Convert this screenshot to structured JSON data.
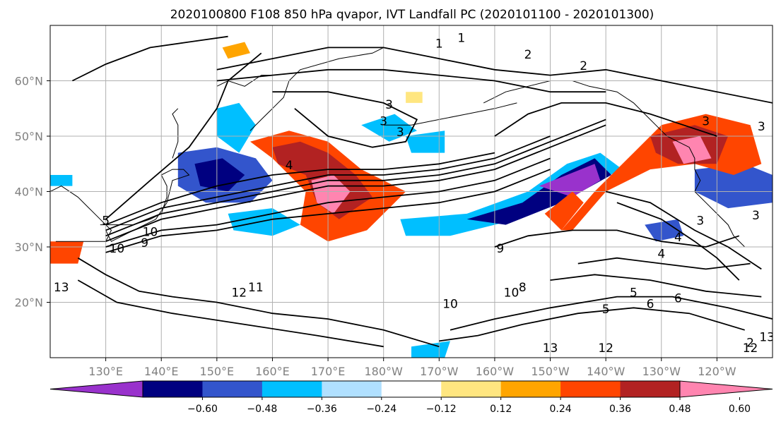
{
  "chart_data": {
    "type": "heatmap",
    "title": "2020100800 F108 850 hPa qvapor, IVT Landfall PC (2020101100 - 2020101300)",
    "map": {
      "lon_range": [
        120,
        250
      ],
      "lat_range": [
        10,
        70
      ],
      "x_ticks": [
        "130°E",
        "140°E",
        "150°E",
        "160°E",
        "170°E",
        "180°W",
        "170°W",
        "160°W",
        "150°W",
        "140°W",
        "130°W",
        "120°W"
      ],
      "x_tick_lons": [
        130,
        140,
        150,
        160,
        170,
        180,
        190,
        200,
        210,
        220,
        230,
        240
      ],
      "y_ticks": [
        "60°N",
        "50°N",
        "40°N",
        "30°N",
        "20°N"
      ],
      "y_tick_lats": [
        60,
        50,
        40,
        30,
        20
      ],
      "grid": true
    },
    "colorbar": {
      "orientation": "horizontal",
      "levels": [
        -0.72,
        -0.6,
        -0.48,
        -0.36,
        -0.24,
        -0.12,
        0.12,
        0.24,
        0.36,
        0.48,
        0.6,
        0.72
      ],
      "tick_labels": [
        "−0.60",
        "−0.48",
        "−0.36",
        "−0.24",
        "−0.12",
        "0.12",
        "0.24",
        "0.36",
        "0.48",
        "0.60"
      ],
      "colors": [
        "#9932cc",
        "#000080",
        "#3355cc",
        "#00bfff",
        "#b0e0ff",
        "#ffffff",
        "#ffe680",
        "#ffa500",
        "#ff4500",
        "#b22222",
        "#ff85b0"
      ],
      "extend": "both"
    },
    "contour_labels": [
      "1",
      "2",
      "2",
      "1",
      "3",
      "3",
      "3",
      "3",
      "4",
      "4",
      "5",
      "10",
      "9",
      "10",
      "13",
      "12",
      "11",
      "10",
      "10",
      "9",
      "8",
      "6",
      "5",
      "6",
      "5",
      "4",
      "3",
      "13",
      "12",
      "12",
      "13",
      "2",
      "3",
      "3"
    ],
    "shaded_regions": [
      {
        "name": "kuroshio-negative",
        "lon": [
          143,
          160
        ],
        "lat": [
          38,
          48
        ],
        "value": -0.5
      },
      {
        "name": "subtropical-positive-jet",
        "lon": [
          155,
          185
        ],
        "lat": [
          32,
          50
        ],
        "value": 0.5
      },
      {
        "name": "central-pacific-negative-band",
        "lon": [
          183,
          223
        ],
        "lat": [
          32,
          47
        ],
        "value": -0.45
      },
      {
        "name": "northeast-pacific-positive",
        "lon": [
          212,
          248
        ],
        "lat": [
          33,
          55
        ],
        "value": 0.5
      },
      {
        "name": "west-coast-negative",
        "lon": [
          236,
          250
        ],
        "lat": [
          37,
          45
        ],
        "value": -0.45
      }
    ]
  }
}
